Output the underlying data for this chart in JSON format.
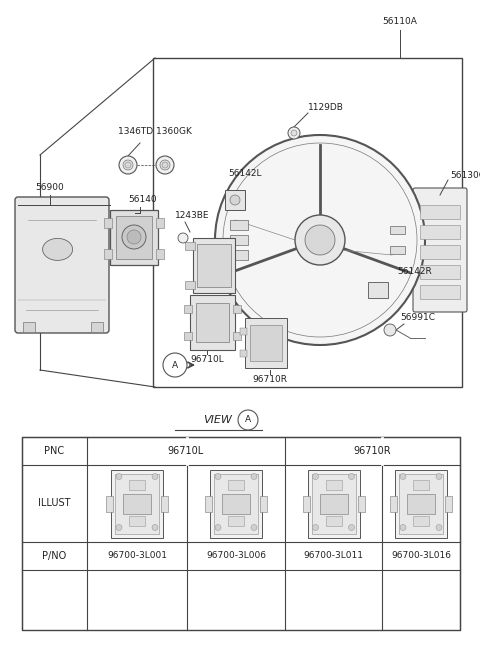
{
  "bg_color": "#ffffff",
  "line_color": "#444444",
  "text_color": "#222222",
  "fig_width": 4.8,
  "fig_height": 6.55,
  "dpi": 100,
  "parts_label_fontsize": 6.5,
  "pno_values": [
    "96700-3L001",
    "96700-3L006",
    "96700-3L011",
    "96700-3L016"
  ],
  "col1_pnc": "96710L",
  "col2_pnc": "96710R"
}
